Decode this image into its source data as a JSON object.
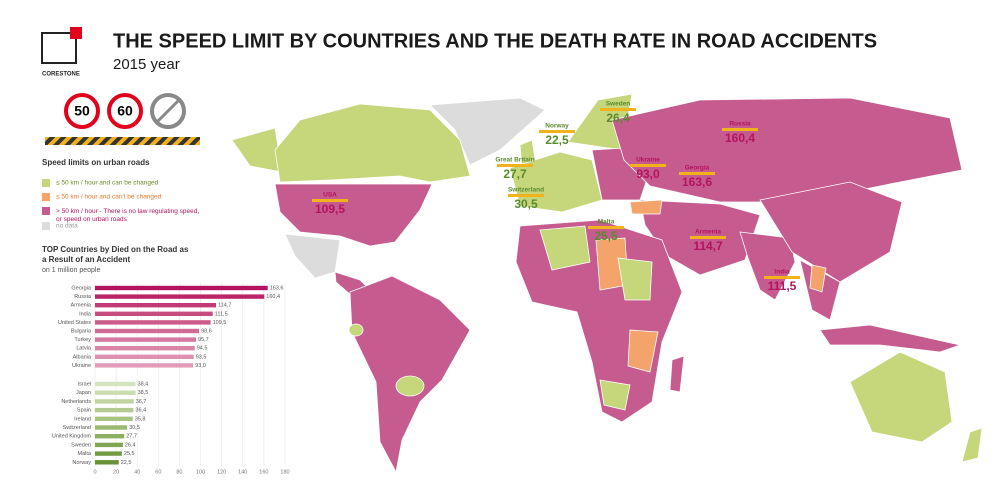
{
  "header": {
    "logo": "CORESTONE",
    "title": "THE SPEED LIMIT BY COUNTRIES AND THE DEATH RATE IN ROAD ACCIDENTS",
    "subtitle": "2015 year"
  },
  "signs": [
    "50",
    "60"
  ],
  "legend": {
    "title": "Speed limits on urban roads",
    "items": [
      {
        "label": "≤ 50 km / hour and can be changed",
        "color": "#c6d67a"
      },
      {
        "label": "≤ 50  km / hour and can't be changed",
        "color": "#f4a36a"
      },
      {
        "label": "> 50 km / hour - There is no law regulating speed, or speed on urban roads",
        "color": "#c55b8e"
      },
      {
        "label": "no data",
        "color": "#dcdcdc"
      }
    ]
  },
  "map": {
    "callouts": [
      {
        "name": "USA",
        "value": "109,5",
        "color": "#b5125f"
      },
      {
        "name": "Great Britain",
        "value": "27,7",
        "color": "#5a8a2e"
      },
      {
        "name": "Norway",
        "value": "22,5",
        "color": "#5a8a2e"
      },
      {
        "name": "Sweden",
        "value": "26,4",
        "color": "#5a8a2e"
      },
      {
        "name": "Switzerland",
        "value": "30,5",
        "color": "#5a8a2e"
      },
      {
        "name": "Malta",
        "value": "25,5",
        "color": "#5a8a2e"
      },
      {
        "name": "Ukraine",
        "value": "93,0",
        "color": "#b5125f"
      },
      {
        "name": "Georgia",
        "value": "163,6",
        "color": "#b5125f"
      },
      {
        "name": "Russia",
        "value": "160,4",
        "color": "#b5125f"
      },
      {
        "name": "Armenia",
        "value": "114,7",
        "color": "#b5125f"
      },
      {
        "name": "India",
        "value": "111,5",
        "color": "#b5125f"
      }
    ]
  },
  "chart_data": {
    "type": "hbar",
    "title": "TOP Countries by Died on the Road as a Result of an Accident",
    "subtitle": "on 1 million people",
    "categories": [
      "Georgia",
      "Russia",
      "Armenia",
      "India",
      "United States",
      "Bulgaria",
      "Turkey",
      "Latvia",
      "Albania",
      "Ukraine",
      "Israel",
      "Japan",
      "Netherlands",
      "Spain",
      "Ireland",
      "Switzerland",
      "United Kingdom",
      "Sweden",
      "Malta",
      "Norway"
    ],
    "values": [
      163.6,
      160.4,
      114.7,
      111.5,
      109.5,
      98.6,
      95.7,
      94.5,
      93.5,
      93.0,
      38.4,
      38.5,
      36.7,
      36.4,
      35.8,
      30.5,
      27.7,
      26.4,
      25.5,
      22.5
    ],
    "value_labels": [
      "163,6",
      "160,4",
      "114,7",
      "111,5",
      "109,5",
      "98,6",
      "95,7",
      "94,5",
      "93,5",
      "93,0",
      "38,4",
      "38,5",
      "36,7",
      "36,4",
      "35,8",
      "30,5",
      "27,7",
      "26,4",
      "25,5",
      "22,5"
    ],
    "colors": [
      "#b5125f",
      "#bb2468",
      "#c23a76",
      "#c84c82",
      "#cd5b8c",
      "#d26a96",
      "#d677a0",
      "#da84a9",
      "#de90b1",
      "#e29cba",
      "#d5e4bf",
      "#cadcb0",
      "#bfd4a1",
      "#b3cb91",
      "#a7c281",
      "#9bb972",
      "#8daf62",
      "#80a553",
      "#739b44",
      "#669136"
    ],
    "xlim": [
      0,
      180
    ],
    "xticks": [
      0,
      20,
      40,
      60,
      80,
      100,
      120,
      140,
      160,
      180
    ],
    "grid": true
  }
}
